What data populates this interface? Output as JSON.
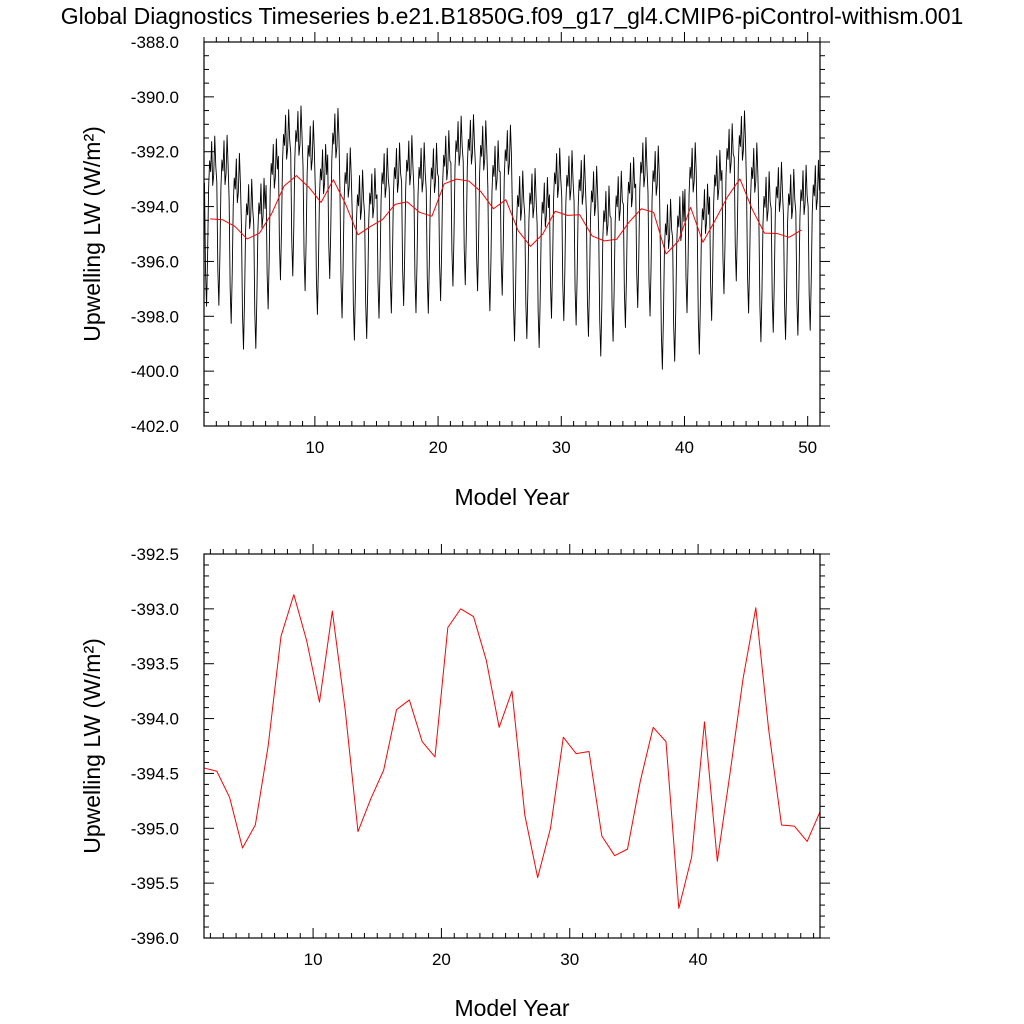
{
  "title": "Global Diagnostics Timeseries b.e21.B1850G.f09_g17_gl4.CMIP6-piControl-withism.001",
  "chart_data": [
    {
      "type": "line",
      "xlabel": "Model Year",
      "ylabel": "Upwelling LW (W/m²)",
      "xlim": [
        1,
        51
      ],
      "ylim": [
        -402,
        -388
      ],
      "xticks": [
        10,
        20,
        30,
        40,
        50
      ],
      "xtick_labels": [
        "10",
        "20",
        "30",
        "40",
        "50"
      ],
      "yticks": [
        -402,
        -400,
        -398,
        -396,
        -394,
        -392,
        -390,
        -388
      ],
      "ytick_labels": [
        "-402.0",
        "-400.0",
        "-398.0",
        "-396.0",
        "-394.0",
        "-392.0",
        "-390.0",
        "-388.0"
      ],
      "grid": false,
      "series": [
        {
          "color": "#000000",
          "resolution": "monthly",
          "x_start": 1.04,
          "x_step": 0.08333,
          "monthly_cycle": [
            0.6,
            -2.6,
            -3.9,
            -2.1,
            0.4,
            1.4,
            1.0,
            2.1,
            0.5,
            0.9,
            2.3,
            1.2
          ],
          "annual_anomaly": [
            1.2,
            1.3,
            0.6,
            -0.2,
            -0.5,
            0.7,
            0.8,
            0.4,
            0.2,
            -0.3,
            0.5,
            -0.4,
            0.1,
            -0.3,
            0.5,
            -0.1,
            0.2,
            0.4,
            0.6,
            -0.6,
            0.0,
            0.2,
            0.5,
            0.3,
            0.7,
            -0.2,
            0.9,
            -0.4,
            0.0,
            0.1,
            -0.2,
            0.4,
            -0.5,
            0.3,
            0.1,
            0.5,
            0.2,
            -0.5,
            -0.8,
            0.1,
            -0.3,
            0.4,
            0.6,
            0.3,
            0.2,
            -0.1,
            0.5,
            0.3,
            0.1,
            0.4,
            0.0
          ]
        },
        {
          "color": "#ff0000",
          "resolution": "annual",
          "x": [
            1.5,
            2.5,
            3.5,
            4.5,
            5.5,
            6.5,
            7.5,
            8.5,
            9.5,
            10.5,
            11.5,
            12.5,
            13.5,
            14.5,
            15.5,
            16.5,
            17.5,
            18.5,
            19.5,
            20.5,
            21.5,
            22.5,
            23.5,
            24.5,
            25.5,
            26.5,
            27.5,
            28.5,
            29.5,
            30.5,
            31.5,
            32.5,
            33.5,
            34.5,
            35.5,
            36.5,
            37.5,
            38.5,
            39.5,
            40.5,
            41.5,
            42.5,
            43.5,
            44.5,
            45.5,
            46.5,
            47.5,
            48.5,
            49.5
          ],
          "values": [
            -394.45,
            -394.48,
            -394.72,
            -395.18,
            -394.97,
            -394.25,
            -393.25,
            -392.87,
            -393.29,
            -393.85,
            -393.02,
            -393.92,
            -395.03,
            -394.73,
            -394.47,
            -393.92,
            -393.83,
            -394.21,
            -394.35,
            -393.17,
            -393.0,
            -393.07,
            -393.47,
            -394.08,
            -393.75,
            -394.88,
            -395.45,
            -395.0,
            -394.17,
            -394.32,
            -394.3,
            -395.07,
            -395.25,
            -395.19,
            -394.57,
            -394.08,
            -394.21,
            -395.73,
            -395.26,
            -394.03,
            -395.3,
            -394.49,
            -393.64,
            -392.99,
            -394.1,
            -394.97,
            -394.98,
            -395.12,
            -394.85
          ]
        }
      ]
    },
    {
      "type": "line",
      "xlabel": "Model Year",
      "ylabel": "Upwelling LW (W/m²)",
      "xlim": [
        1.5,
        49.5
      ],
      "ylim": [
        -396,
        -392.5
      ],
      "xticks": [
        10,
        20,
        30,
        40
      ],
      "xtick_labels": [
        "10",
        "20",
        "30",
        "40"
      ],
      "yticks": [
        -396,
        -395.5,
        -395,
        -394.5,
        -394,
        -393.5,
        -393,
        -392.5
      ],
      "ytick_labels": [
        "-396.0",
        "-395.5",
        "-395.0",
        "-394.5",
        "-394.0",
        "-393.5",
        "-393.0",
        "-392.5"
      ],
      "grid": false,
      "series": [
        {
          "color": "#ff0000",
          "resolution": "annual",
          "x": [
            1.5,
            2.5,
            3.5,
            4.5,
            5.5,
            6.5,
            7.5,
            8.5,
            9.5,
            10.5,
            11.5,
            12.5,
            13.5,
            14.5,
            15.5,
            16.5,
            17.5,
            18.5,
            19.5,
            20.5,
            21.5,
            22.5,
            23.5,
            24.5,
            25.5,
            26.5,
            27.5,
            28.5,
            29.5,
            30.5,
            31.5,
            32.5,
            33.5,
            34.5,
            35.5,
            36.5,
            37.5,
            38.5,
            39.5,
            40.5,
            41.5,
            42.5,
            43.5,
            44.5,
            45.5,
            46.5,
            47.5,
            48.5,
            49.5
          ],
          "values": [
            -394.45,
            -394.48,
            -394.72,
            -395.18,
            -394.97,
            -394.25,
            -393.25,
            -392.87,
            -393.29,
            -393.85,
            -393.02,
            -393.92,
            -395.03,
            -394.73,
            -394.47,
            -393.92,
            -393.83,
            -394.21,
            -394.35,
            -393.17,
            -393.0,
            -393.07,
            -393.47,
            -394.08,
            -393.75,
            -394.88,
            -395.45,
            -395.0,
            -394.17,
            -394.32,
            -394.3,
            -395.07,
            -395.25,
            -395.19,
            -394.57,
            -394.08,
            -394.21,
            -395.73,
            -395.26,
            -394.03,
            -395.3,
            -394.49,
            -393.64,
            -392.99,
            -394.1,
            -394.97,
            -394.98,
            -395.12,
            -394.85
          ]
        }
      ]
    }
  ]
}
